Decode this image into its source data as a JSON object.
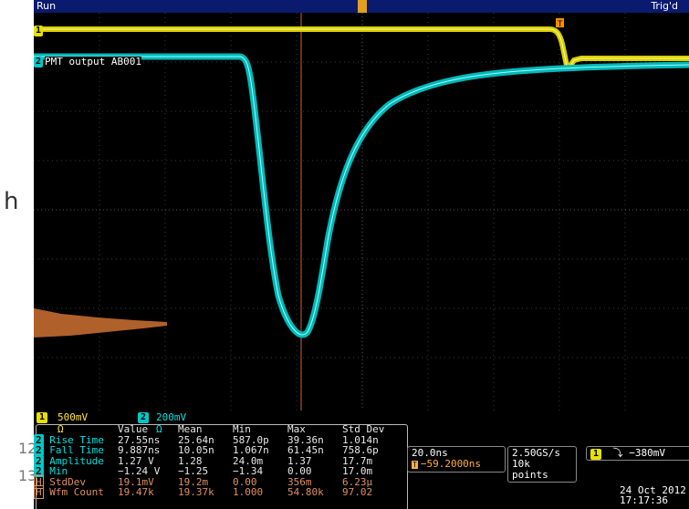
{
  "status": {
    "run": "Run",
    "trig_state": "Trig'd"
  },
  "channels": {
    "ch1": {
      "number": "1",
      "color": "#e8e000",
      "scale": "500mV Ω"
    },
    "ch2": {
      "number": "2",
      "color": "#00c8c8",
      "scale": "200mV Ω",
      "label": "PMT output AB001"
    }
  },
  "trigger_marker": "T",
  "measurements": {
    "headers": [
      "Value",
      "Mean",
      "Min",
      "Max",
      "Std Dev"
    ],
    "rows": [
      {
        "src": "2",
        "name": "Rise Time",
        "value": "27.55ns",
        "mean": "25.64n",
        "min": "587.0p",
        "max": "39.36n",
        "std": "1.014n"
      },
      {
        "src": "2",
        "name": "Fall Time",
        "value": "9.887ns",
        "mean": "10.05n",
        "min": "1.067n",
        "max": "61.45n",
        "std": "758.6p"
      },
      {
        "src": "2",
        "name": "Amplitude",
        "value": "1.27 V",
        "mean": "1.28",
        "min": "24.0m",
        "max": "1.37",
        "std": "17.7m"
      },
      {
        "src": "2",
        "name": "Min",
        "value": "−1.24 V",
        "mean": "−1.25",
        "min": "−1.34",
        "max": "0.00",
        "std": "17.0m"
      },
      {
        "src": "H",
        "name": "StdDev",
        "value": "19.1mV",
        "mean": "19.2m",
        "min": "0.00",
        "max": "356m",
        "std": "6.23µ"
      },
      {
        "src": "H",
        "name": "Wfm Count",
        "value": "19.47k",
        "mean": "19.37k",
        "min": "1.000",
        "max": "54.80k",
        "std": "97.02"
      }
    ]
  },
  "timebase": {
    "scale": "20.0ns",
    "position": "−59.2000ns"
  },
  "acquisition": {
    "rate": "2.50GS/s",
    "points": "10k points"
  },
  "trigger": {
    "source": "1",
    "level": "−380mV"
  },
  "datetime": {
    "date": "24 Oct 2012",
    "time": "17:17:36"
  },
  "side_text": {
    "letter": "h",
    "digits_1": "12",
    "digits_2": "13"
  }
}
